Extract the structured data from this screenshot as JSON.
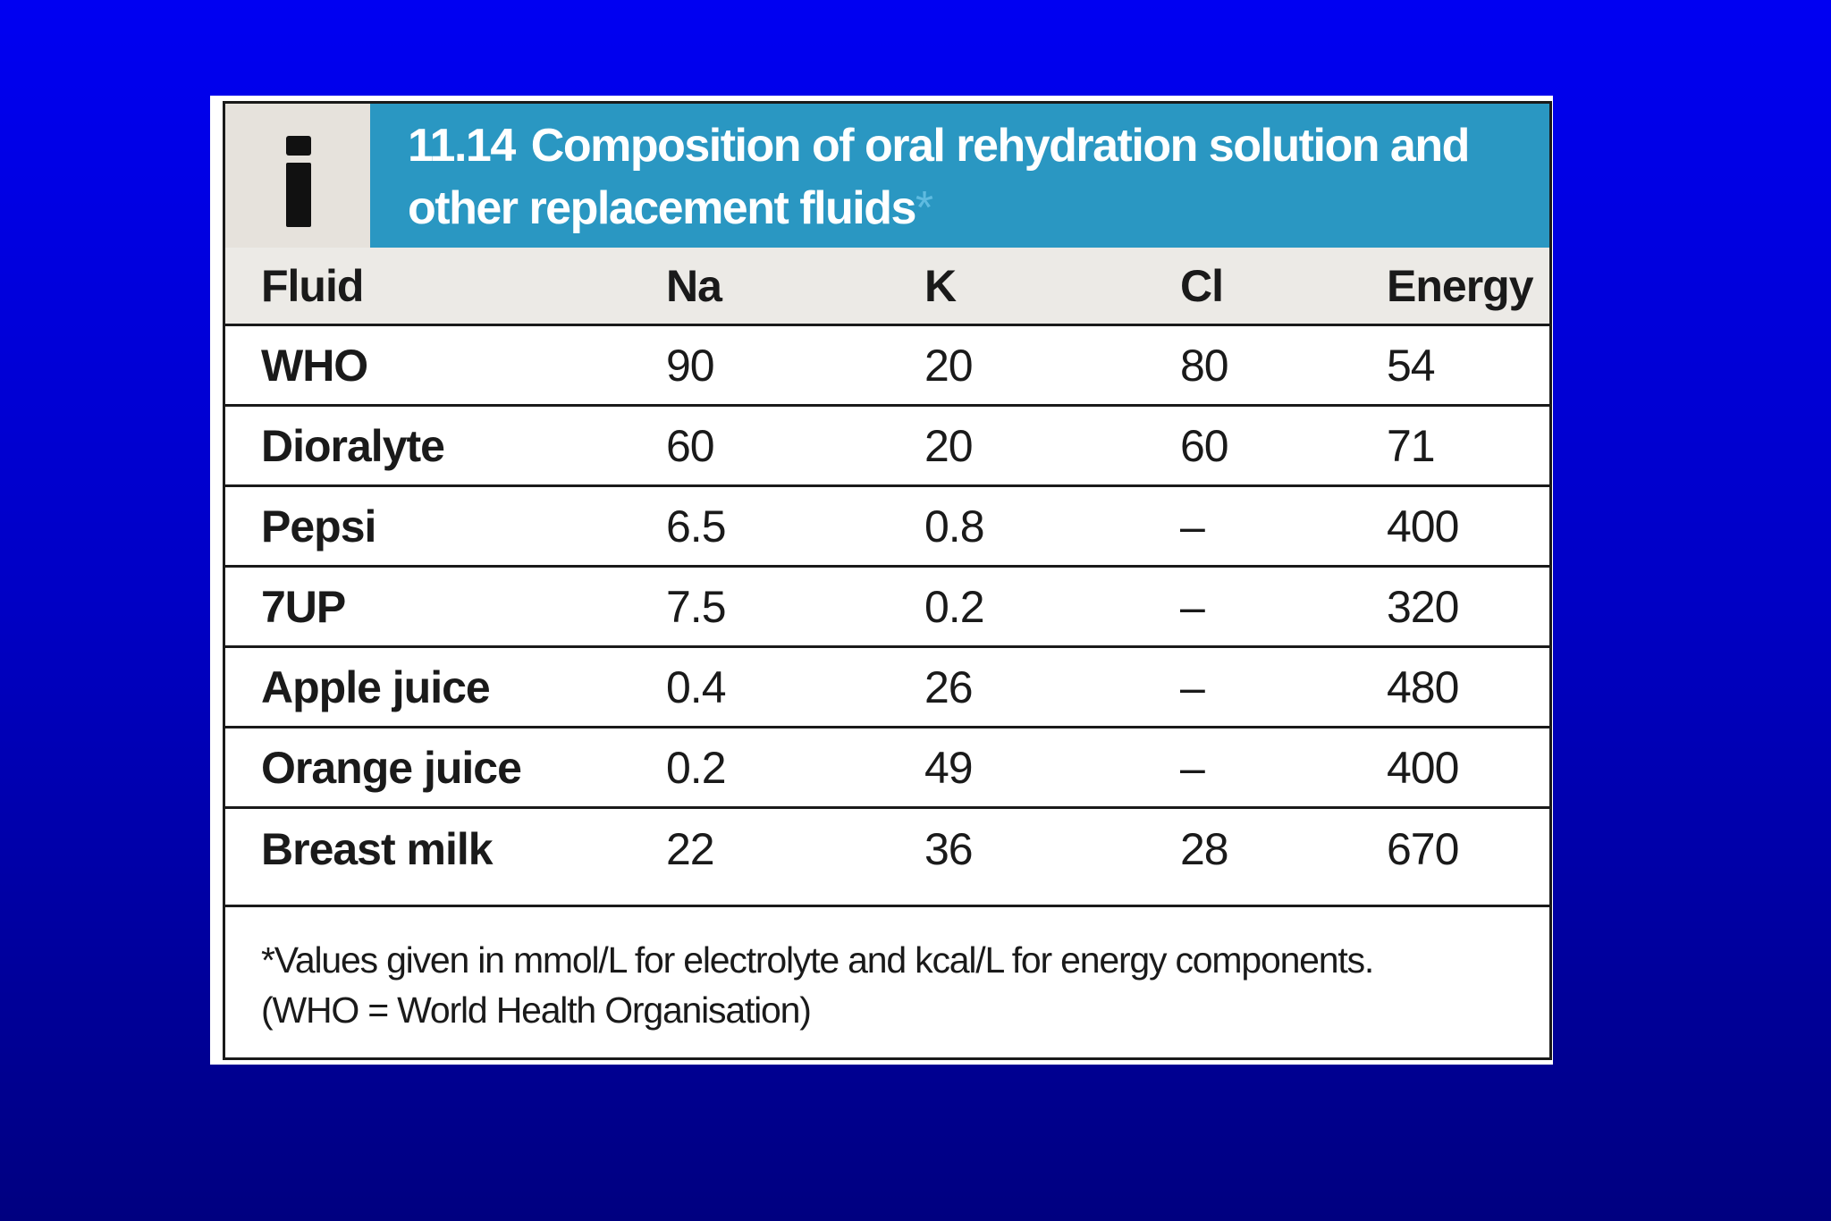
{
  "table": {
    "badge_glyph": "i",
    "title_number": "11.14",
    "title_line1": "Composition of oral rehydration solution and",
    "title_line2": "other replacement fluids",
    "title_asterisk": "*",
    "columns": [
      "Fluid",
      "Na",
      "K",
      "Cl",
      "Energy"
    ],
    "rows": [
      {
        "fluid": "WHO",
        "na": "90",
        "k": "20",
        "cl": "80",
        "energy": "54"
      },
      {
        "fluid": "Dioralyte",
        "na": "60",
        "k": "20",
        "cl": "60",
        "energy": "71"
      },
      {
        "fluid": "Pepsi",
        "na": "6.5",
        "k": "0.8",
        "cl": "–",
        "energy": "400"
      },
      {
        "fluid": "7UP",
        "na": "7.5",
        "k": "0.2",
        "cl": "–",
        "energy": "320"
      },
      {
        "fluid": "Apple juice",
        "na": "0.4",
        "k": "26",
        "cl": "–",
        "energy": "480"
      },
      {
        "fluid": "Orange juice",
        "na": "0.2",
        "k": "49",
        "cl": "–",
        "energy": "400"
      },
      {
        "fluid": "Breast milk",
        "na": "22",
        "k": "36",
        "cl": "28",
        "energy": "670"
      }
    ],
    "footnote_line1": "*Values given in mmol/L for electrolyte and kcal/L for energy components.",
    "footnote_line2": "(WHO = World Health Organisation)"
  },
  "colors": {
    "background_top": "#0000f2",
    "background_bottom": "#000080",
    "title_band": "#2a97c2",
    "badge": "#e6e2dc",
    "header_row": "#eceae6"
  }
}
